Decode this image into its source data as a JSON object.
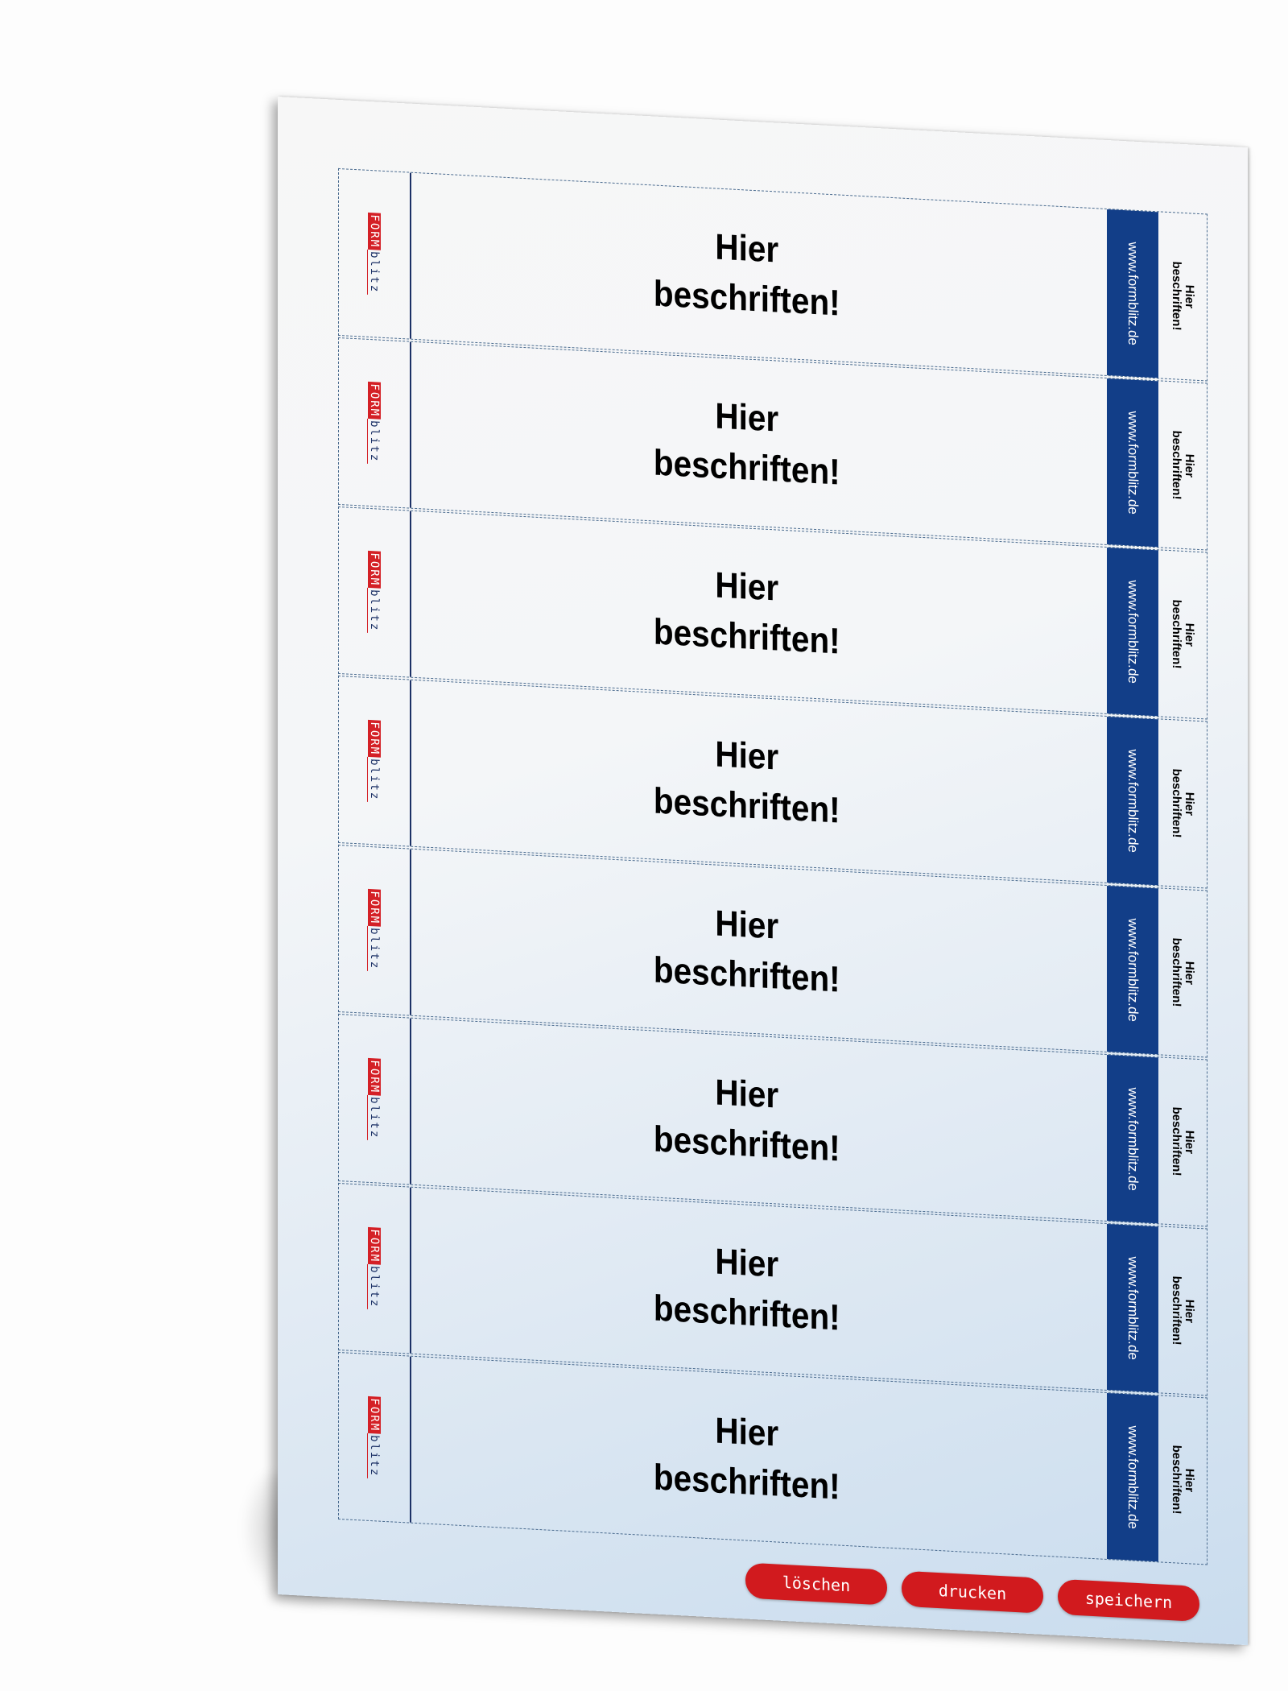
{
  "labels": [
    {
      "main": "Hier\nbeschriften!",
      "url": "www.formblitz.de",
      "side": "Hier\nbeschriften!"
    },
    {
      "main": "Hier\nbeschriften!",
      "url": "www.formblitz.de",
      "side": "Hier\nbeschriften!"
    },
    {
      "main": "Hier\nbeschriften!",
      "url": "www.formblitz.de",
      "side": "Hier\nbeschriften!"
    },
    {
      "main": "Hier\nbeschriften!",
      "url": "www.formblitz.de",
      "side": "Hier\nbeschriften!"
    },
    {
      "main": "Hier\nbeschriften!",
      "url": "www.formblitz.de",
      "side": "Hier\nbeschriften!"
    },
    {
      "main": "Hier\nbeschriften!",
      "url": "www.formblitz.de",
      "side": "Hier\nbeschriften!"
    },
    {
      "main": "Hier\nbeschriften!",
      "url": "www.formblitz.de",
      "side": "Hier\nbeschriften!"
    },
    {
      "main": "Hier\nbeschriften!",
      "url": "www.formblitz.de",
      "side": "Hier\nbeschriften!"
    }
  ],
  "logo": {
    "part1": "FORM",
    "part2": "blitz"
  },
  "buttons": {
    "delete": "löschen",
    "print": "drucken",
    "save": "speichern"
  },
  "colors": {
    "brand_blue": "#123e88",
    "brand_red": "#d11a1e"
  }
}
